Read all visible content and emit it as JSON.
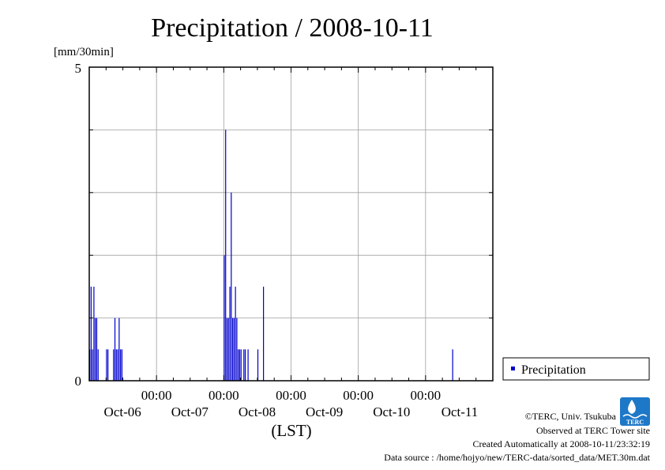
{
  "chart_data": {
    "type": "bar",
    "title": "Precipitation / 2008-10-11",
    "ylabel": "[mm/30min]",
    "xlabel": "(LST)",
    "ylim": [
      0,
      5
    ],
    "yticks": [
      {
        "value": 0,
        "label": "0"
      },
      {
        "value": 5,
        "label": "5"
      }
    ],
    "xlim_days": [
      5.0,
      11.0
    ],
    "xticks": [
      {
        "day": 6,
        "time": "00:00",
        "date": "Oct-06"
      },
      {
        "day": 7,
        "time": "00:00",
        "date": "Oct-07"
      },
      {
        "day": 8,
        "time": "00:00",
        "date": "Oct-08"
      },
      {
        "day": 9,
        "time": "00:00",
        "date": "Oct-09"
      },
      {
        "day": 10,
        "time": "00:00",
        "date": "Oct-10"
      }
    ],
    "top_date_label": "Oct-11",
    "grid": true,
    "bar_color": "#0000cc",
    "series": [
      {
        "name": "Precipitation",
        "points": [
          {
            "t": "10-05 00:00",
            "v": 0.5
          },
          {
            "t": "10-05 00:30",
            "v": 1.5
          },
          {
            "t": "10-05 01:00",
            "v": 0.5
          },
          {
            "t": "10-05 01:30",
            "v": 1.5
          },
          {
            "t": "10-05 02:00",
            "v": 1.0
          },
          {
            "t": "10-05 02:30",
            "v": 1.0
          },
          {
            "t": "10-05 03:00",
            "v": 0.5
          },
          {
            "t": "10-05 06:00",
            "v": 0.5
          },
          {
            "t": "10-05 06:30",
            "v": 0.5
          },
          {
            "t": "10-05 08:30",
            "v": 0.5
          },
          {
            "t": "10-05 09:00",
            "v": 1.0
          },
          {
            "t": "10-05 09:30",
            "v": 0.5
          },
          {
            "t": "10-05 10:00",
            "v": 0.5
          },
          {
            "t": "10-05 10:30",
            "v": 1.0
          },
          {
            "t": "10-05 11:00",
            "v": 0.5
          },
          {
            "t": "10-05 11:30",
            "v": 0.5
          },
          {
            "t": "10-07 00:00",
            "v": 2.0
          },
          {
            "t": "10-07 00:30",
            "v": 4.0
          },
          {
            "t": "10-07 01:00",
            "v": 1.0
          },
          {
            "t": "10-07 01:30",
            "v": 1.0
          },
          {
            "t": "10-07 02:00",
            "v": 1.5
          },
          {
            "t": "10-07 02:30",
            "v": 3.0
          },
          {
            "t": "10-07 03:00",
            "v": 1.0
          },
          {
            "t": "10-07 03:30",
            "v": 1.0
          },
          {
            "t": "10-07 04:00",
            "v": 1.5
          },
          {
            "t": "10-07 04:30",
            "v": 1.0
          },
          {
            "t": "10-07 05:00",
            "v": 0.5
          },
          {
            "t": "10-07 05:30",
            "v": 0.5
          },
          {
            "t": "10-07 06:00",
            "v": 0.5
          },
          {
            "t": "10-07 07:00",
            "v": 0.5
          },
          {
            "t": "10-07 07:30",
            "v": 0.5
          },
          {
            "t": "10-07 08:30",
            "v": 0.5
          },
          {
            "t": "10-07 12:00",
            "v": 0.5
          },
          {
            "t": "10-07 14:00",
            "v": 1.5
          },
          {
            "t": "10-10 09:30",
            "v": 0.5
          }
        ]
      }
    ],
    "legend": {
      "label": "Precipitation",
      "position": "right"
    }
  },
  "footer": {
    "copyright": "©TERC, Univ. Tsukuba",
    "observed": "Observed at TERC Tower site",
    "created": "Created Automatically at 2008-10-11/23:32:19",
    "source": "Data source : /home/hojyo/new/TERC-data/sorted_data/MET.30m.dat",
    "logo_text": "TERC"
  }
}
